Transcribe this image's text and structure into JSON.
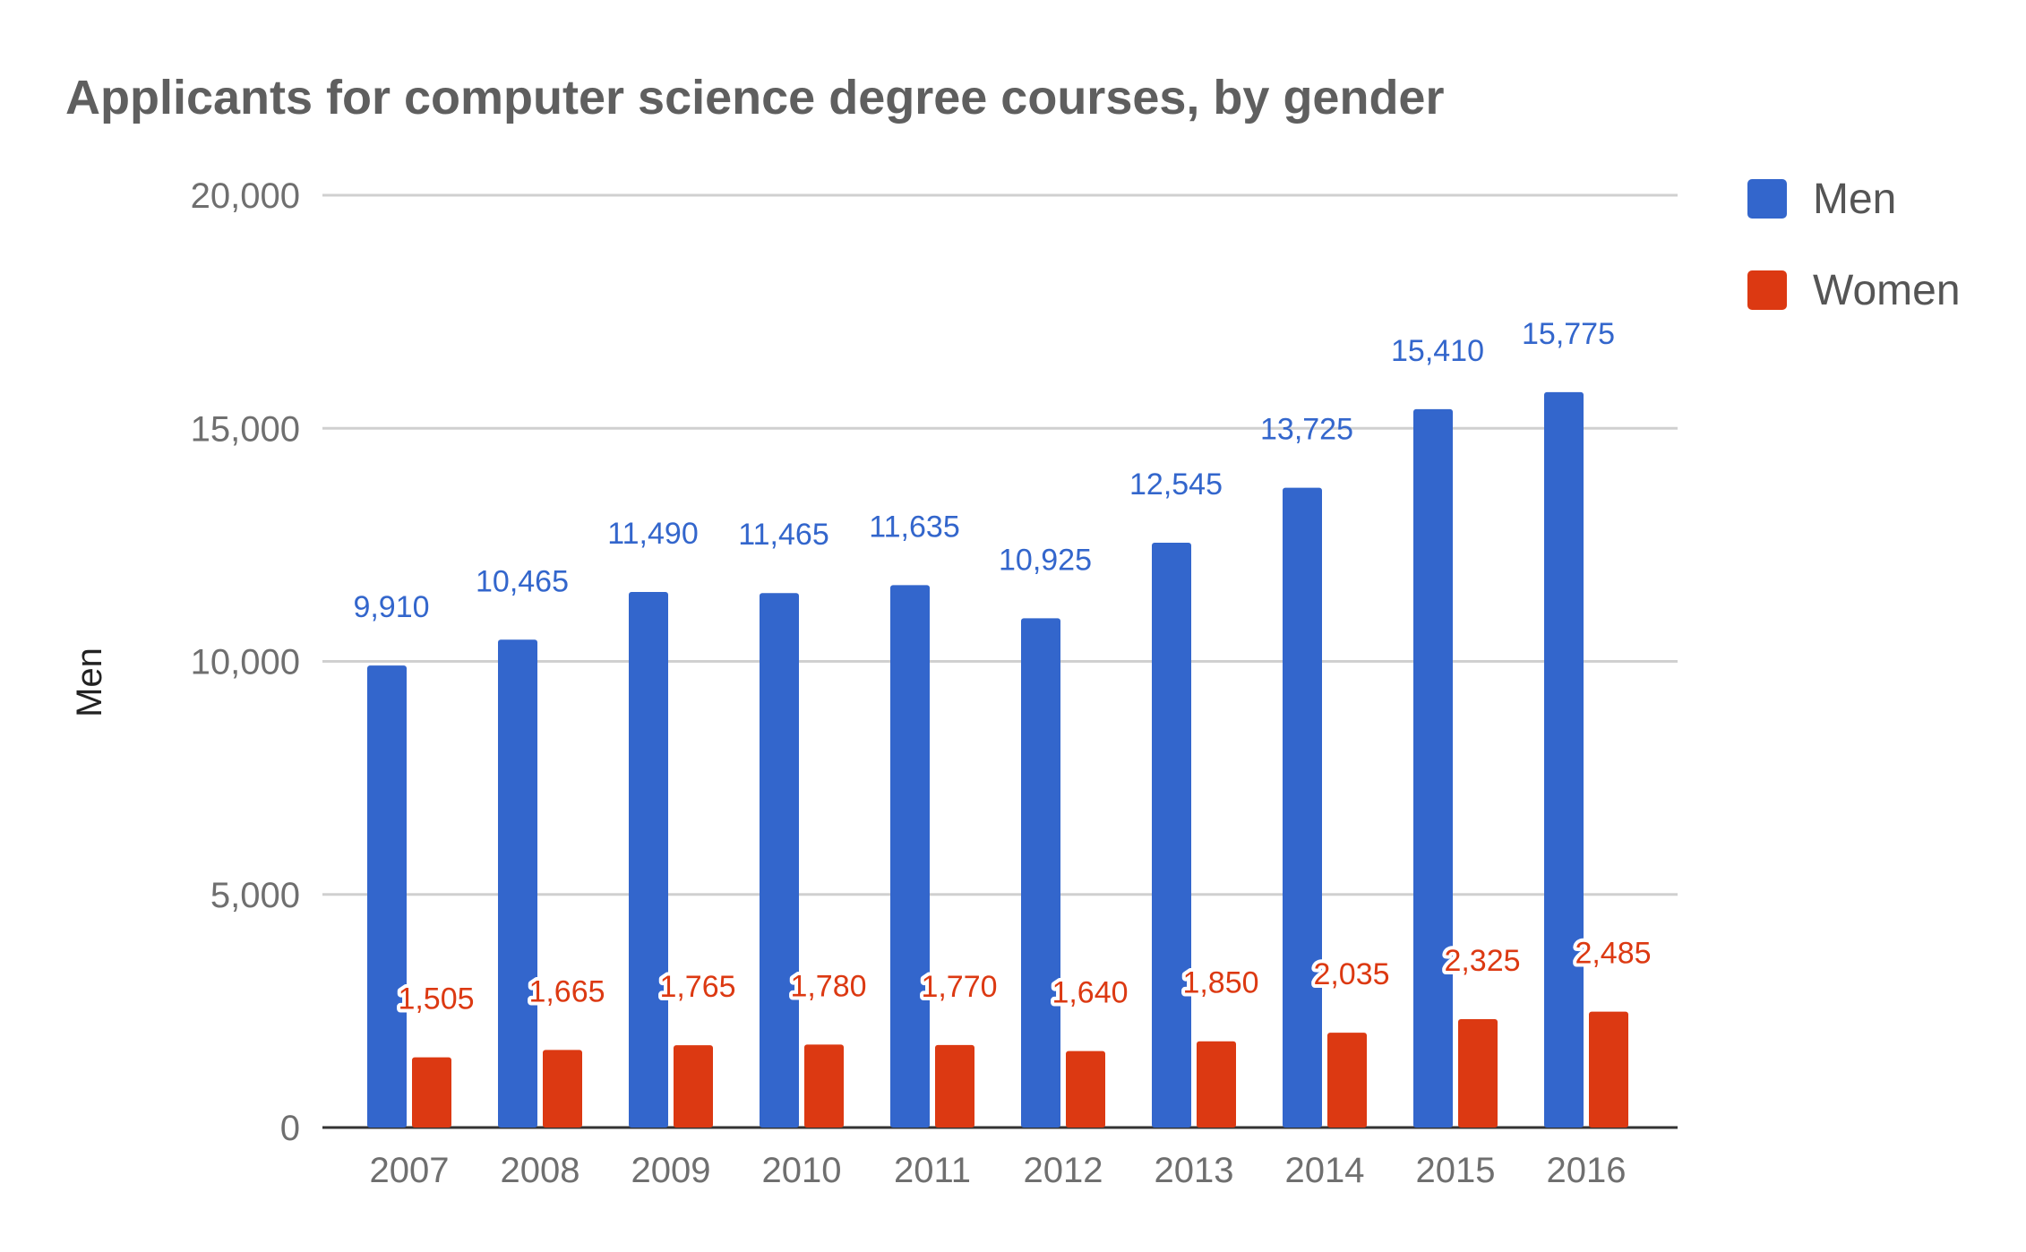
{
  "chart_data": {
    "type": "bar",
    "title": "Applicants for computer science degree courses, by gender",
    "xlabel": "",
    "ylabel": "Men",
    "ylim": [
      0,
      20000
    ],
    "yticks": [
      "0",
      "5,000",
      "10,000",
      "15,000",
      "20,000"
    ],
    "grid": true,
    "legend_position": "right",
    "categories": [
      "2007",
      "2008",
      "2009",
      "2010",
      "2011",
      "2012",
      "2013",
      "2014",
      "2015",
      "2016"
    ],
    "series": [
      {
        "name": "Men",
        "color": "#3366cc",
        "values": [
          9910,
          10465,
          11490,
          11465,
          11635,
          10925,
          12545,
          13725,
          15410,
          15775
        ],
        "labels": [
          "9,910",
          "10,465",
          "11,490",
          "11,465",
          "11,635",
          "10,925",
          "12,545",
          "13,725",
          "15,410",
          "15,775"
        ]
      },
      {
        "name": "Women",
        "color": "#dc3912",
        "values": [
          1505,
          1665,
          1765,
          1780,
          1770,
          1640,
          1850,
          2035,
          2325,
          2485
        ],
        "labels": [
          "1,505",
          "1,665",
          "1,765",
          "1,780",
          "1,770",
          "1,640",
          "1,850",
          "2,035",
          "2,325",
          "2,485"
        ]
      }
    ]
  }
}
